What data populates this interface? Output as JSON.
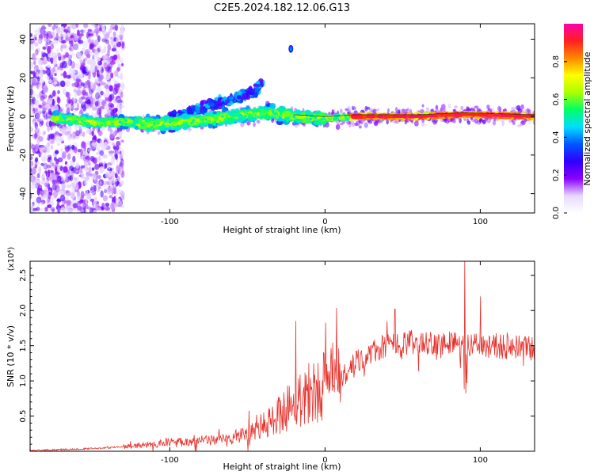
{
  "title": "C2E5.2024.182.12.06.G13",
  "chart_data": [
    {
      "type": "heatmap",
      "xlabel": "Height of straight line (km)",
      "ylabel": "Frequency (Hz)",
      "xlim": [
        -190,
        135
      ],
      "ylim": [
        -50,
        48
      ],
      "xticks": [
        -100,
        0,
        100
      ],
      "yticks": [
        -40,
        -20,
        0,
        20,
        40
      ],
      "colorbar": {
        "label": "Normalized spectral amplitude",
        "range": [
          0,
          1
        ],
        "ticks": [
          "0.0",
          "0.2",
          "0.4",
          "0.6",
          "0.8"
        ],
        "colormap": [
          "#ffffff",
          "#e6d8ff",
          "#8a00ff",
          "#3000ff",
          "#0055ff",
          "#00ddff",
          "#00ff66",
          "#aaff00",
          "#ffff00",
          "#ff8800",
          "#ff2020",
          "#ff00aa"
        ]
      },
      "ridge_frequency_hz": [
        {
          "x": -170,
          "y": -1
        },
        {
          "x": -150,
          "y": -3
        },
        {
          "x": -130,
          "y": -3
        },
        {
          "x": -110,
          "y": -4
        },
        {
          "x": -90,
          "y": -3
        },
        {
          "x": -70,
          "y": -1
        },
        {
          "x": -50,
          "y": 1
        },
        {
          "x": -35,
          "y": 2
        },
        {
          "x": -20,
          "y": 0
        },
        {
          "x": 0,
          "y": -1
        },
        {
          "x": 20,
          "y": 0
        },
        {
          "x": 60,
          "y": 0
        },
        {
          "x": 90,
          "y": 1
        },
        {
          "x": 135,
          "y": 0
        }
      ],
      "upper_branch_hz": [
        {
          "x": -100,
          "y": 0
        },
        {
          "x": -80,
          "y": 4
        },
        {
          "x": -60,
          "y": 9
        },
        {
          "x": -45,
          "y": 13
        },
        {
          "x": -40,
          "y": 18
        }
      ],
      "isolated_blob": {
        "x": -22,
        "y": 35
      }
    },
    {
      "type": "line",
      "xlabel": "Height of straight line (km)",
      "ylabel": "SNR (10 * v/v)",
      "y_multiplier": "(x10⁴)",
      "xlim": [
        -190,
        135
      ],
      "ylim": [
        0,
        2.7
      ],
      "xticks": [
        -100,
        0,
        100
      ],
      "yticks": [
        0.5,
        1.0,
        1.5,
        2.0,
        2.5
      ],
      "series": [
        {
          "color": "#e8302a",
          "points": [
            {
              "x": -190,
              "y": 0.01
            },
            {
              "x": -160,
              "y": 0.03
            },
            {
              "x": -140,
              "y": 0.05
            },
            {
              "x": -120,
              "y": 0.08
            },
            {
              "x": -100,
              "y": 0.13
            },
            {
              "x": -80,
              "y": 0.15
            },
            {
              "x": -60,
              "y": 0.18
            },
            {
              "x": -40,
              "y": 0.35
            },
            {
              "x": -30,
              "y": 0.5
            },
            {
              "x": -20,
              "y": 0.7
            },
            {
              "x": -10,
              "y": 0.85
            },
            {
              "x": 0,
              "y": 0.95
            },
            {
              "x": 10,
              "y": 1.05
            },
            {
              "x": 20,
              "y": 1.25
            },
            {
              "x": 30,
              "y": 1.4
            },
            {
              "x": 40,
              "y": 1.5
            },
            {
              "x": 60,
              "y": 1.55
            },
            {
              "x": 80,
              "y": 1.55
            },
            {
              "x": 90,
              "y": 1.5
            },
            {
              "x": 110,
              "y": 1.5
            },
            {
              "x": 135,
              "y": 1.45
            }
          ],
          "peaks": [
            {
              "x": -19,
              "y": 1.85
            },
            {
              "x": 45,
              "y": 2.02
            },
            {
              "x": 90,
              "y": 2.7
            },
            {
              "x": 100,
              "y": 2.2
            }
          ]
        }
      ]
    }
  ]
}
